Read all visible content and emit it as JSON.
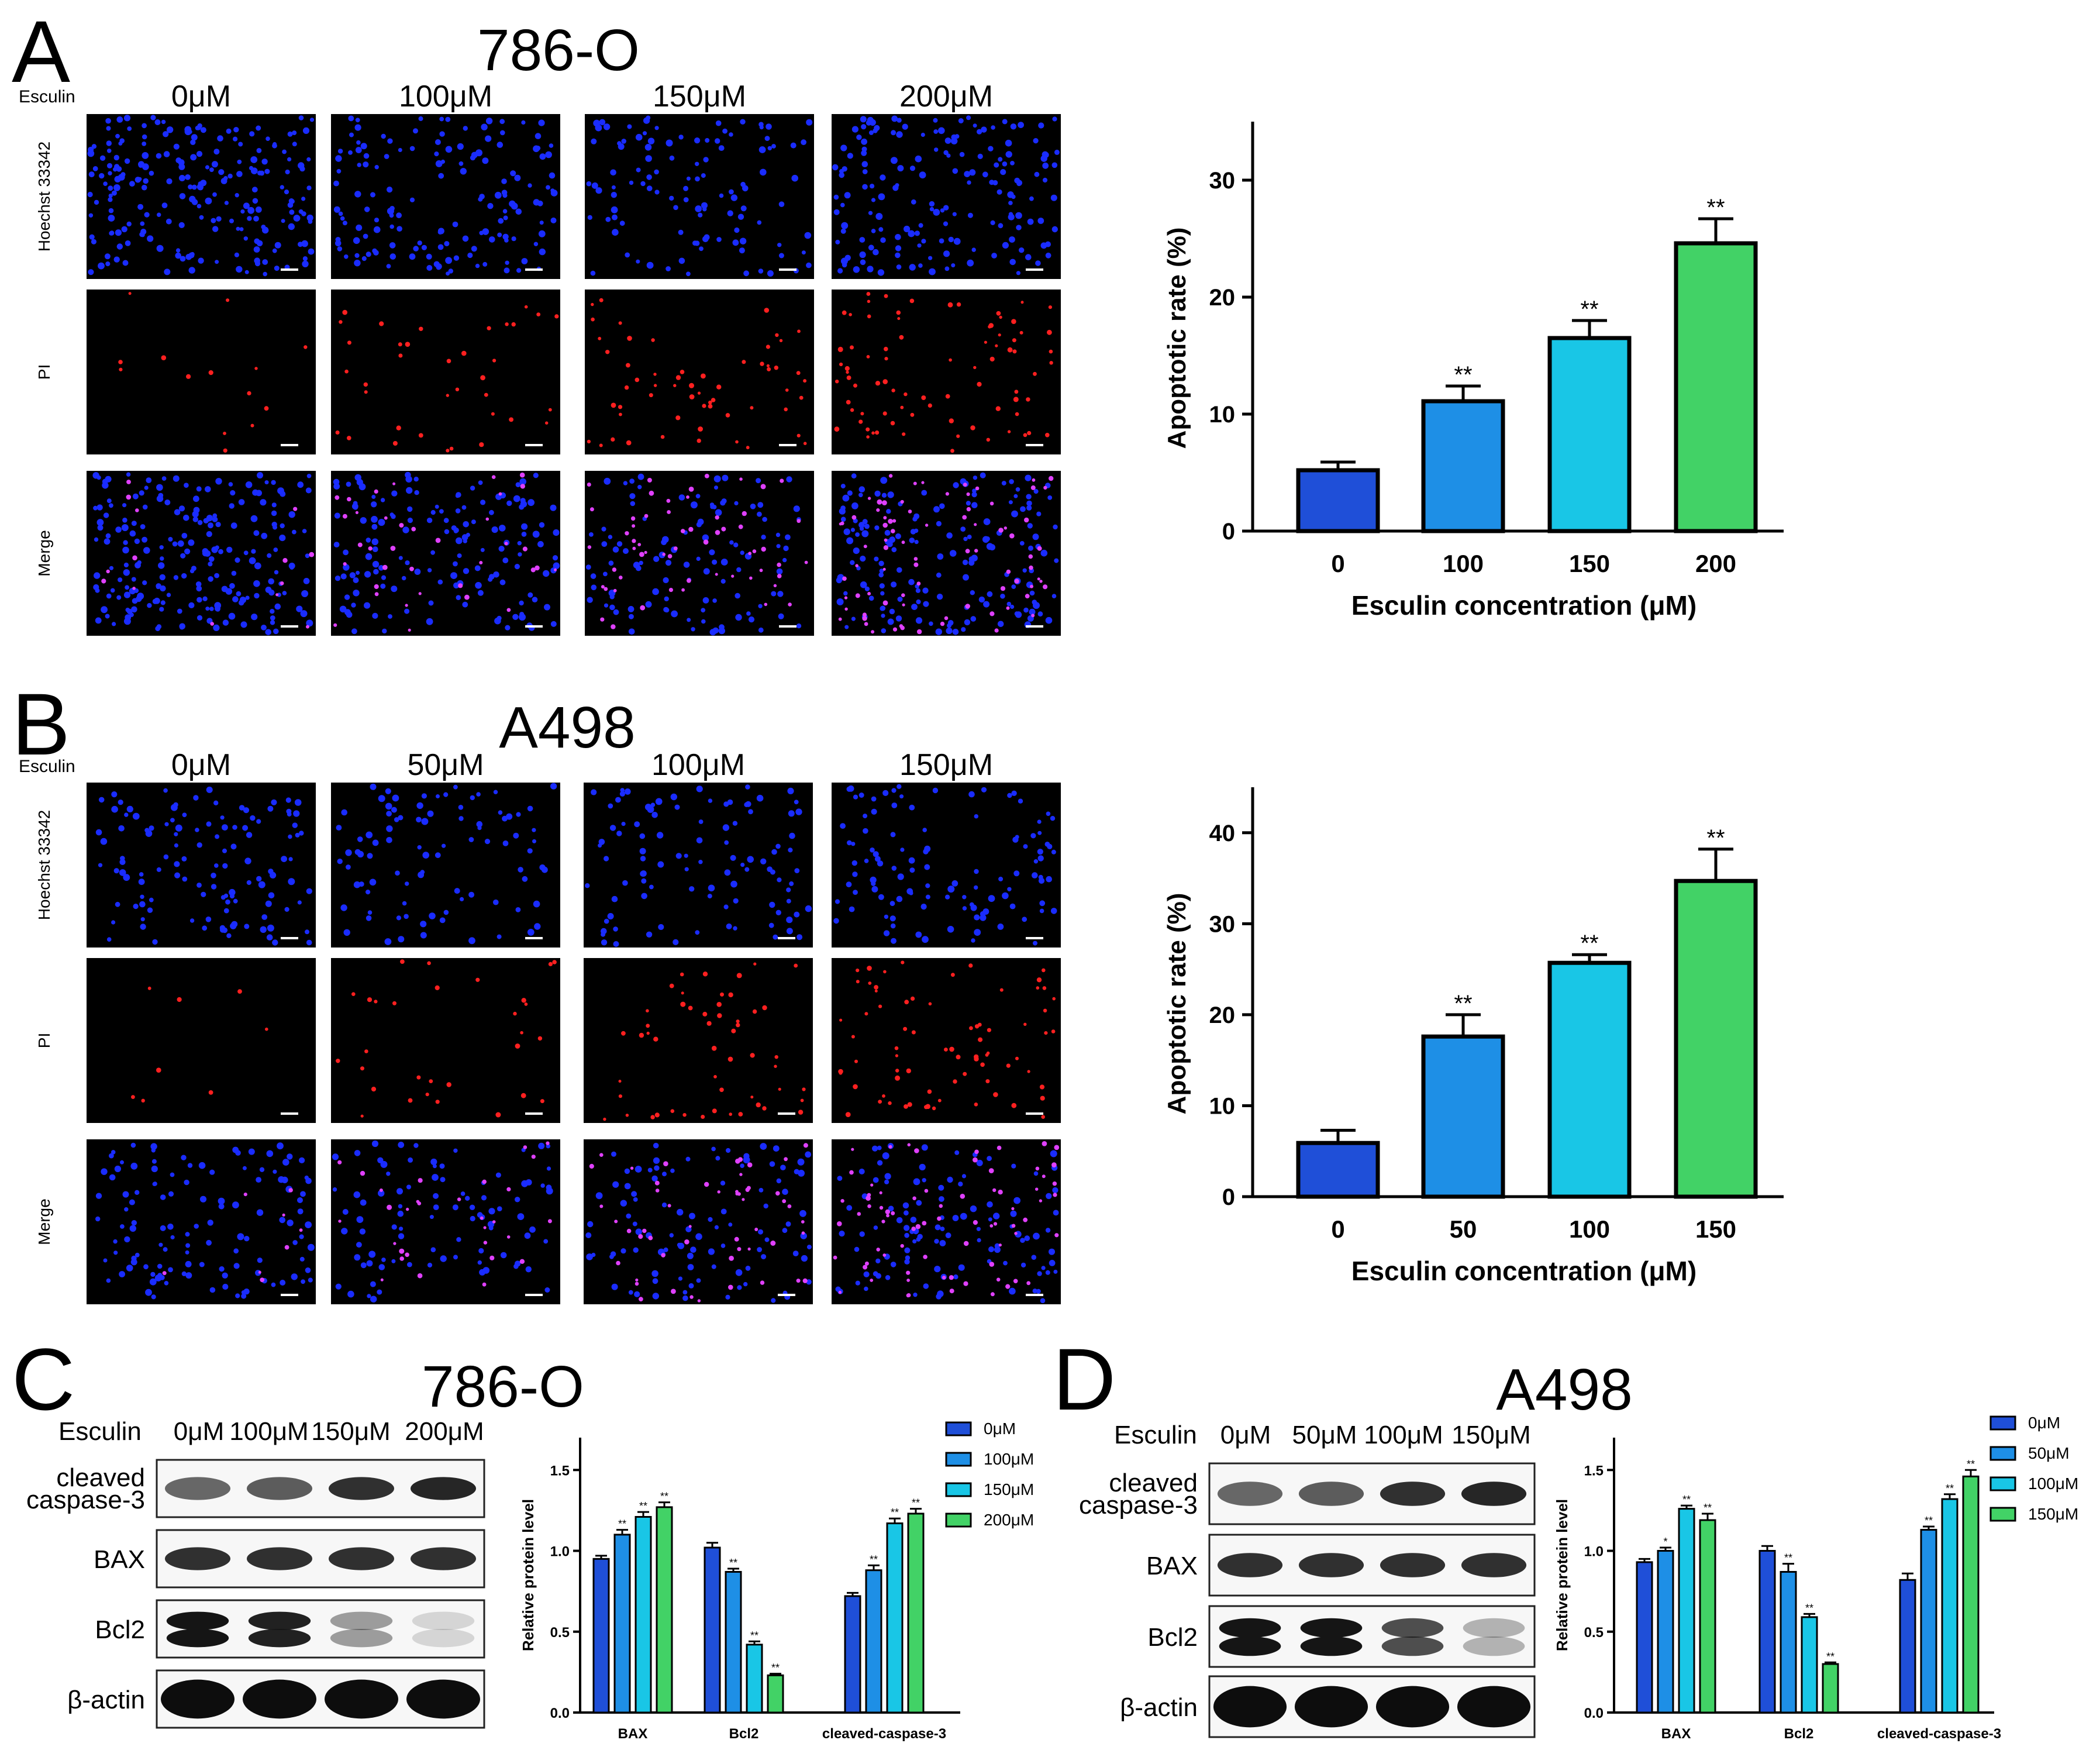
{
  "panels": {
    "A": {
      "letter": "A",
      "cell_line": "786-O",
      "treatment_label": "Esculin",
      "doses": [
        "0μM",
        "100μM",
        "150μM",
        "200μM"
      ],
      "row_labels": [
        "Hoechst 33342",
        "PI",
        "Merge"
      ]
    },
    "B": {
      "letter": "B",
      "cell_line": "A498",
      "treatment_label": "Esculin",
      "doses": [
        "0μM",
        "50μM",
        "100μM",
        "150μM"
      ],
      "row_labels": [
        "Hoechst 33342",
        "PI",
        "Merge"
      ]
    },
    "C": {
      "letter": "C",
      "cell_line": "786-O",
      "treatment_label": "Esculin",
      "doses": [
        "0μM",
        "100μM",
        "150μM",
        "200μM"
      ],
      "blot_labels": [
        "cleaved\ncaspase-3",
        "BAX",
        "Bcl2",
        "β-actin"
      ]
    },
    "D": {
      "letter": "D",
      "cell_line": "A498",
      "treatment_label": "Esculin",
      "doses": [
        "0μM",
        "50μM",
        "100μM",
        "150μM"
      ],
      "blot_labels": [
        "cleaved\ncaspase-3",
        "BAX",
        "Bcl2",
        "β-actin"
      ]
    }
  },
  "colors": {
    "dose0": "#1f4fd8",
    "dose1": "#1e8fe6",
    "dose2": "#19c6e6",
    "dose3": "#42d266",
    "hoechst": "#1a2cff",
    "pi": "#ff2020",
    "merge_pink": "#e040ff"
  },
  "chart_data": [
    {
      "id": "A",
      "type": "bar",
      "categories": [
        "0",
        "100",
        "150",
        "200"
      ],
      "values": [
        5.2,
        11.1,
        16.5,
        24.6
      ],
      "errors": [
        0.7,
        1.3,
        1.5,
        2.1
      ],
      "significance": [
        "",
        "**",
        "**",
        "**"
      ],
      "xlabel": "Esculin concentration (μM)",
      "ylabel": "Apoptotic rate (%)",
      "ylim": [
        0,
        35
      ],
      "yticks": [
        0,
        10,
        20,
        30
      ]
    },
    {
      "id": "B",
      "type": "bar",
      "categories": [
        "0",
        "50",
        "100",
        "150"
      ],
      "values": [
        5.9,
        17.6,
        25.7,
        34.7
      ],
      "errors": [
        1.4,
        2.4,
        0.9,
        3.5
      ],
      "significance": [
        "",
        "**",
        "**",
        "**"
      ],
      "xlabel": "Esculin concentration (μM)",
      "ylabel": "Apoptotic rate (%)",
      "ylim": [
        0,
        45
      ],
      "yticks": [
        0,
        10,
        20,
        30,
        40
      ]
    },
    {
      "id": "C",
      "type": "bar",
      "categories": [
        "BAX",
        "Bcl2",
        "cleaved-caspase-3"
      ],
      "series": [
        {
          "name": "0μM",
          "values": [
            0.95,
            1.02,
            0.72
          ],
          "errors": [
            0.02,
            0.03,
            0.02
          ],
          "sig": [
            "",
            "",
            ""
          ]
        },
        {
          "name": "100μM",
          "values": [
            1.1,
            0.87,
            0.88
          ],
          "errors": [
            0.03,
            0.02,
            0.03
          ],
          "sig": [
            "**",
            "**",
            "**"
          ]
        },
        {
          "name": "150μM",
          "values": [
            1.21,
            0.42,
            1.17
          ],
          "errors": [
            0.03,
            0.02,
            0.03
          ],
          "sig": [
            "**",
            "**",
            "**"
          ]
        },
        {
          "name": "200μM",
          "values": [
            1.27,
            0.23,
            1.23
          ],
          "errors": [
            0.03,
            0.01,
            0.03
          ],
          "sig": [
            "**",
            "**",
            "**"
          ]
        }
      ],
      "ylabel": "Relative protein level",
      "ylim": [
        0,
        1.7
      ],
      "yticks": [
        "0.0",
        "0.5",
        "1.0",
        "1.5"
      ]
    },
    {
      "id": "D",
      "type": "bar",
      "categories": [
        "BAX",
        "Bcl2",
        "cleaved-caspase-3"
      ],
      "series": [
        {
          "name": "0μM",
          "values": [
            0.93,
            1.0,
            0.82
          ],
          "errors": [
            0.02,
            0.03,
            0.04
          ],
          "sig": [
            "",
            "",
            ""
          ]
        },
        {
          "name": "50μM",
          "values": [
            1.0,
            0.87,
            1.13
          ],
          "errors": [
            0.02,
            0.05,
            0.02
          ],
          "sig": [
            "*",
            "**",
            "**"
          ]
        },
        {
          "name": "100μM",
          "values": [
            1.26,
            0.59,
            1.32
          ],
          "errors": [
            0.02,
            0.02,
            0.03
          ],
          "sig": [
            "**",
            "**",
            "**"
          ]
        },
        {
          "name": "150μM",
          "values": [
            1.19,
            0.3,
            1.46
          ],
          "errors": [
            0.04,
            0.01,
            0.04
          ],
          "sig": [
            "**",
            "**",
            "**"
          ]
        }
      ],
      "ylabel": "Relative protein level",
      "ylim": [
        0,
        1.7
      ],
      "yticks": [
        "0.0",
        "0.5",
        "1.0",
        "1.5"
      ]
    }
  ]
}
